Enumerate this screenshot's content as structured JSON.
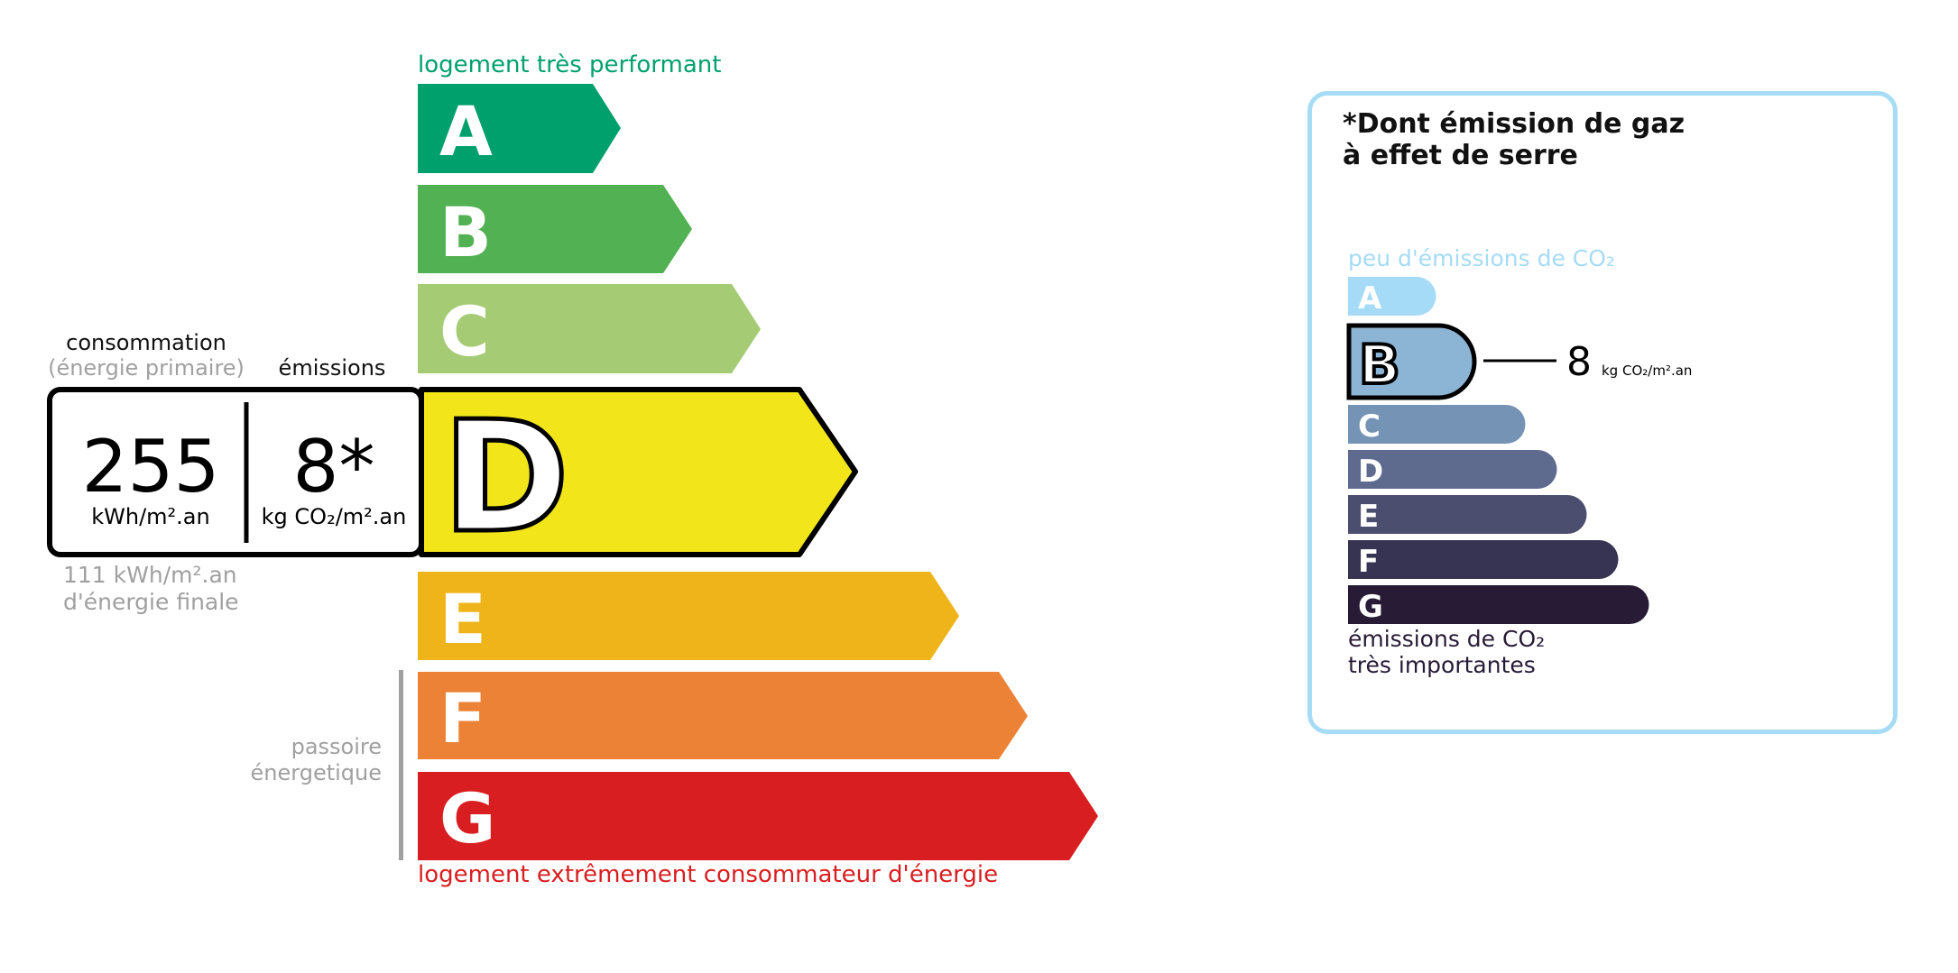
{
  "energy_label": {
    "top_caption": "logement très performant",
    "bottom_caption": "logement extrêmement consommateur d'énergie",
    "classes": [
      {
        "letter": "A",
        "color": "#00a06d"
      },
      {
        "letter": "B",
        "color": "#52b153"
      },
      {
        "letter": "C",
        "color": "#a5cc74"
      },
      {
        "letter": "D",
        "color": "#f2e61a"
      },
      {
        "letter": "E",
        "color": "#efb41a"
      },
      {
        "letter": "F",
        "color": "#eb8235"
      },
      {
        "letter": "G",
        "color": "#d81e20"
      }
    ],
    "current_class": "D",
    "consumption_label": "consommation",
    "consumption_sublabel": "(énergie primaire)",
    "emissions_label": "émissions",
    "consumption_value": "255",
    "consumption_unit": "kWh/m².an",
    "emissions_value": "8*",
    "emissions_unit": "kg CO₂/m².an",
    "final_energy_value": "111 kWh/m².an",
    "final_energy_label": "d'énergie finale",
    "passoire_line1": "passoire",
    "passoire_line2": "énergetique",
    "top_caption_color": "#00a06d",
    "bottom_caption_color": "#d81e20"
  },
  "ges_label": {
    "title_line1": "*Dont émission de gaz",
    "title_line2": "à effet de serre",
    "top_caption": "peu d'émissions de CO₂",
    "bottom_caption_line1": "émissions de CO₂",
    "bottom_caption_line2": "très importantes",
    "classes": [
      {
        "letter": "A",
        "color": "#a5dbf6"
      },
      {
        "letter": "B",
        "color": "#8cb4d4"
      },
      {
        "letter": "C",
        "color": "#7593b4"
      },
      {
        "letter": "D",
        "color": "#5f6b8e"
      },
      {
        "letter": "E",
        "color": "#4b4e6e"
      },
      {
        "letter": "F",
        "color": "#373453"
      },
      {
        "letter": "G",
        "color": "#271b36"
      }
    ],
    "current_class": "B",
    "value": "8",
    "unit": "kg CO₂/m².an",
    "border_color": "#a6dcf5"
  }
}
